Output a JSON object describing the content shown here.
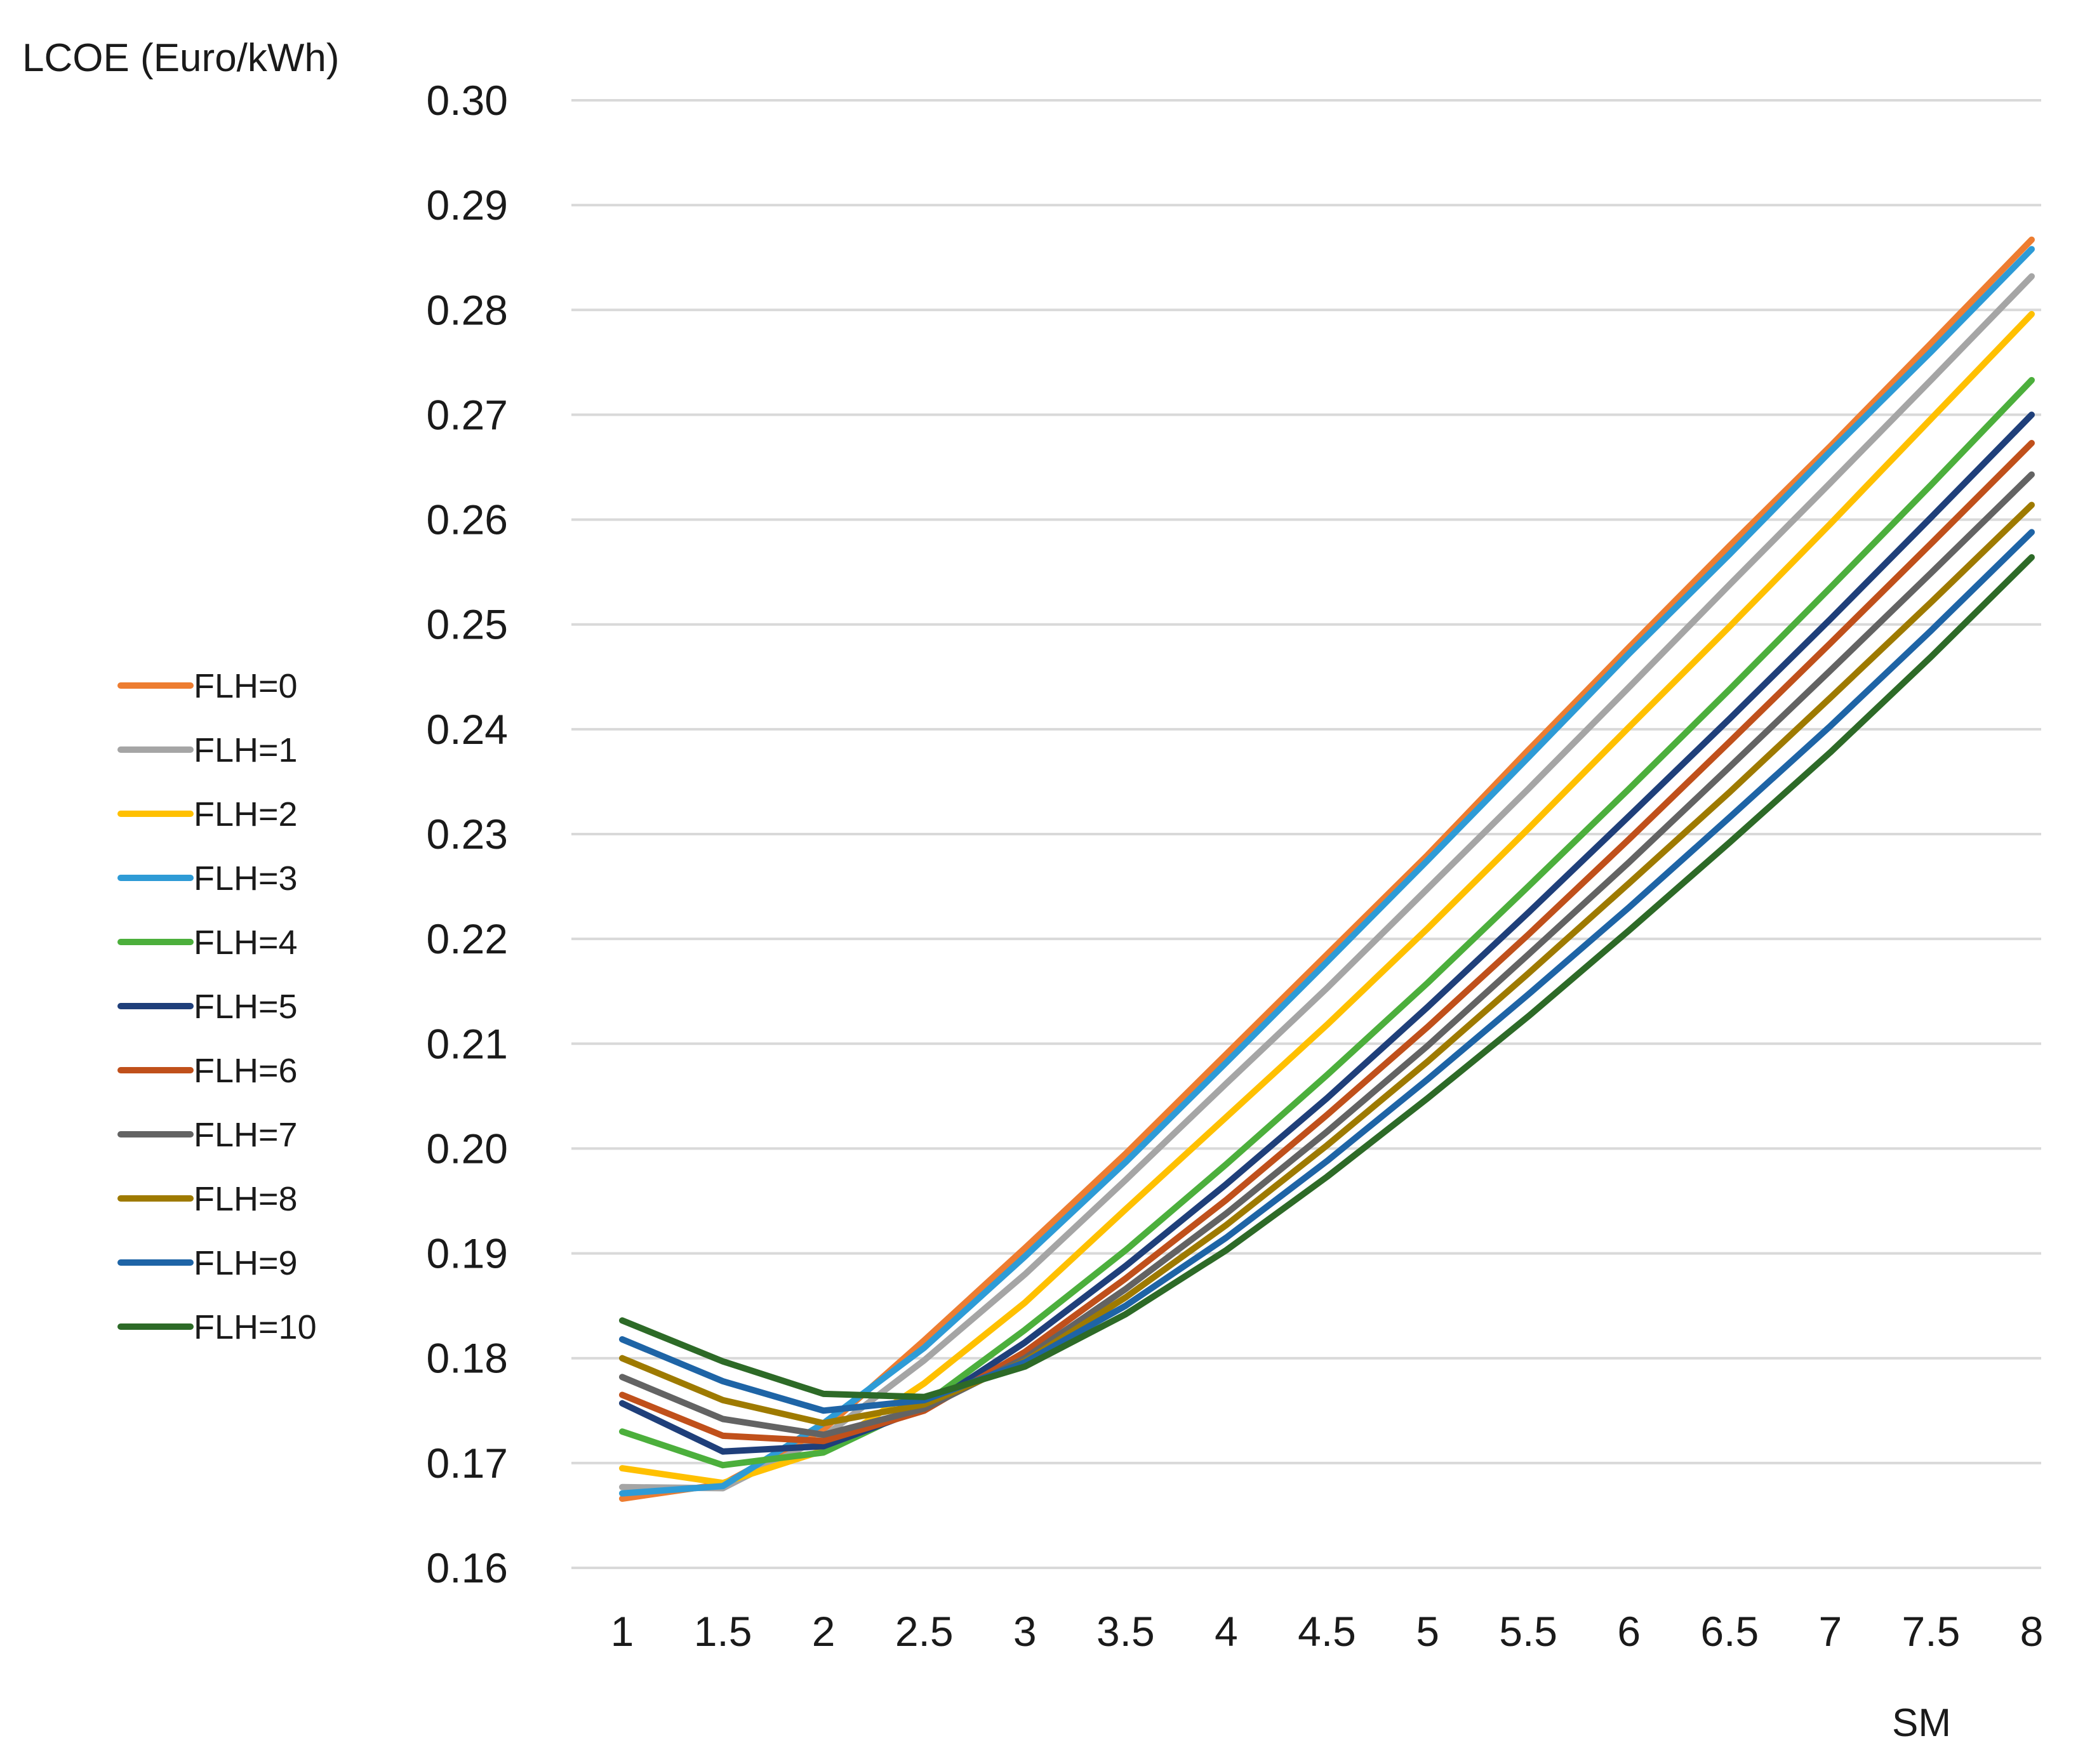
{
  "chart_data": {
    "type": "line",
    "title": "",
    "ylabel": "LCOE (Euro/kWh)",
    "xlabel": "SM",
    "ylim": [
      0.16,
      0.3
    ],
    "yticks": [
      0.16,
      0.17,
      0.18,
      0.19,
      0.2,
      0.21,
      0.22,
      0.23,
      0.24,
      0.25,
      0.26,
      0.27,
      0.28,
      0.29,
      0.3
    ],
    "ytick_labels": [
      "0.16",
      "0.17",
      "0.18",
      "0.19",
      "0.20",
      "0.21",
      "0.22",
      "0.23",
      "0.24",
      "0.25",
      "0.26",
      "0.27",
      "0.28",
      "0.29",
      "0.30"
    ],
    "categories": [
      "1",
      "1.5",
      "2",
      "2.5",
      "3",
      "3.5",
      "4",
      "4.5",
      "5",
      "5.5",
      "6",
      "6.5",
      "7",
      "7.5",
      "8"
    ],
    "grid": true,
    "legend_position": "left-middle",
    "series": [
      {
        "name": "FLH=0",
        "color": "#ED7D31",
        "values": [
          0.1666,
          0.168,
          0.1732,
          0.1817,
          0.1905,
          0.1995,
          0.209,
          0.2185,
          0.228,
          0.238,
          0.2478,
          0.2575,
          0.267,
          0.2768,
          0.2867
        ]
      },
      {
        "name": "FLH=1",
        "color": "#A5A5A5",
        "values": [
          0.1677,
          0.1676,
          0.1725,
          0.1798,
          0.188,
          0.197,
          0.2062,
          0.2153,
          0.2248,
          0.2343,
          0.244,
          0.2538,
          0.2635,
          0.2733,
          0.2832
        ]
      },
      {
        "name": "FLH=2",
        "color": "#FFC000",
        "values": [
          0.1695,
          0.1681,
          0.1712,
          0.1776,
          0.1853,
          0.1942,
          0.203,
          0.2118,
          0.221,
          0.2305,
          0.2402,
          0.2498,
          0.2596,
          0.2696,
          0.2796
        ]
      },
      {
        "name": "FLH=3",
        "color": "#2E9BD6",
        "values": [
          0.1671,
          0.1678,
          0.1738,
          0.181,
          0.1897,
          0.1987,
          0.2082,
          0.2178,
          0.2275,
          0.2373,
          0.2472,
          0.2567,
          0.2665,
          0.276,
          0.2858
        ]
      },
      {
        "name": "FLH=4",
        "color": "#4CAF3C",
        "values": [
          0.173,
          0.1698,
          0.171,
          0.1756,
          0.1827,
          0.1903,
          0.1985,
          0.207,
          0.2158,
          0.225,
          0.2343,
          0.2438,
          0.2535,
          0.2633,
          0.2733
        ]
      },
      {
        "name": "FLH=5",
        "color": "#1F3F7A",
        "values": [
          0.1757,
          0.1711,
          0.1716,
          0.1752,
          0.1815,
          0.1888,
          0.1966,
          0.2048,
          0.2135,
          0.2225,
          0.2317,
          0.241,
          0.2505,
          0.2602,
          0.27
        ]
      },
      {
        "name": "FLH=6",
        "color": "#C0501B",
        "values": [
          0.1765,
          0.1726,
          0.1721,
          0.175,
          0.1806,
          0.1876,
          0.1951,
          0.2032,
          0.2116,
          0.2204,
          0.2295,
          0.2388,
          0.2482,
          0.2577,
          0.2673
        ]
      },
      {
        "name": "FLH=7",
        "color": "#636363",
        "values": [
          0.1782,
          0.1742,
          0.1727,
          0.1752,
          0.18,
          0.1866,
          0.1938,
          0.2016,
          0.2098,
          0.2185,
          0.2273,
          0.2364,
          0.2456,
          0.2549,
          0.2643
        ]
      },
      {
        "name": "FLH=8",
        "color": "#9E7A00",
        "values": [
          0.18,
          0.176,
          0.1738,
          0.1756,
          0.1797,
          0.1858,
          0.1927,
          0.2003,
          0.2083,
          0.2167,
          0.2253,
          0.234,
          0.243,
          0.2521,
          0.2614
        ]
      },
      {
        "name": "FLH=9",
        "color": "#1E64A6",
        "values": [
          0.1818,
          0.1778,
          0.175,
          0.176,
          0.1796,
          0.185,
          0.1915,
          0.1988,
          0.2066,
          0.2147,
          0.223,
          0.2316,
          0.2403,
          0.2494,
          0.2588
        ]
      },
      {
        "name": "FLH=10",
        "color": "#2D6A27",
        "values": [
          0.1836,
          0.1797,
          0.1766,
          0.1763,
          0.1792,
          0.1842,
          0.1903,
          0.1973,
          0.2048,
          0.2126,
          0.2208,
          0.2292,
          0.2378,
          0.2469,
          0.2564
        ]
      }
    ]
  }
}
